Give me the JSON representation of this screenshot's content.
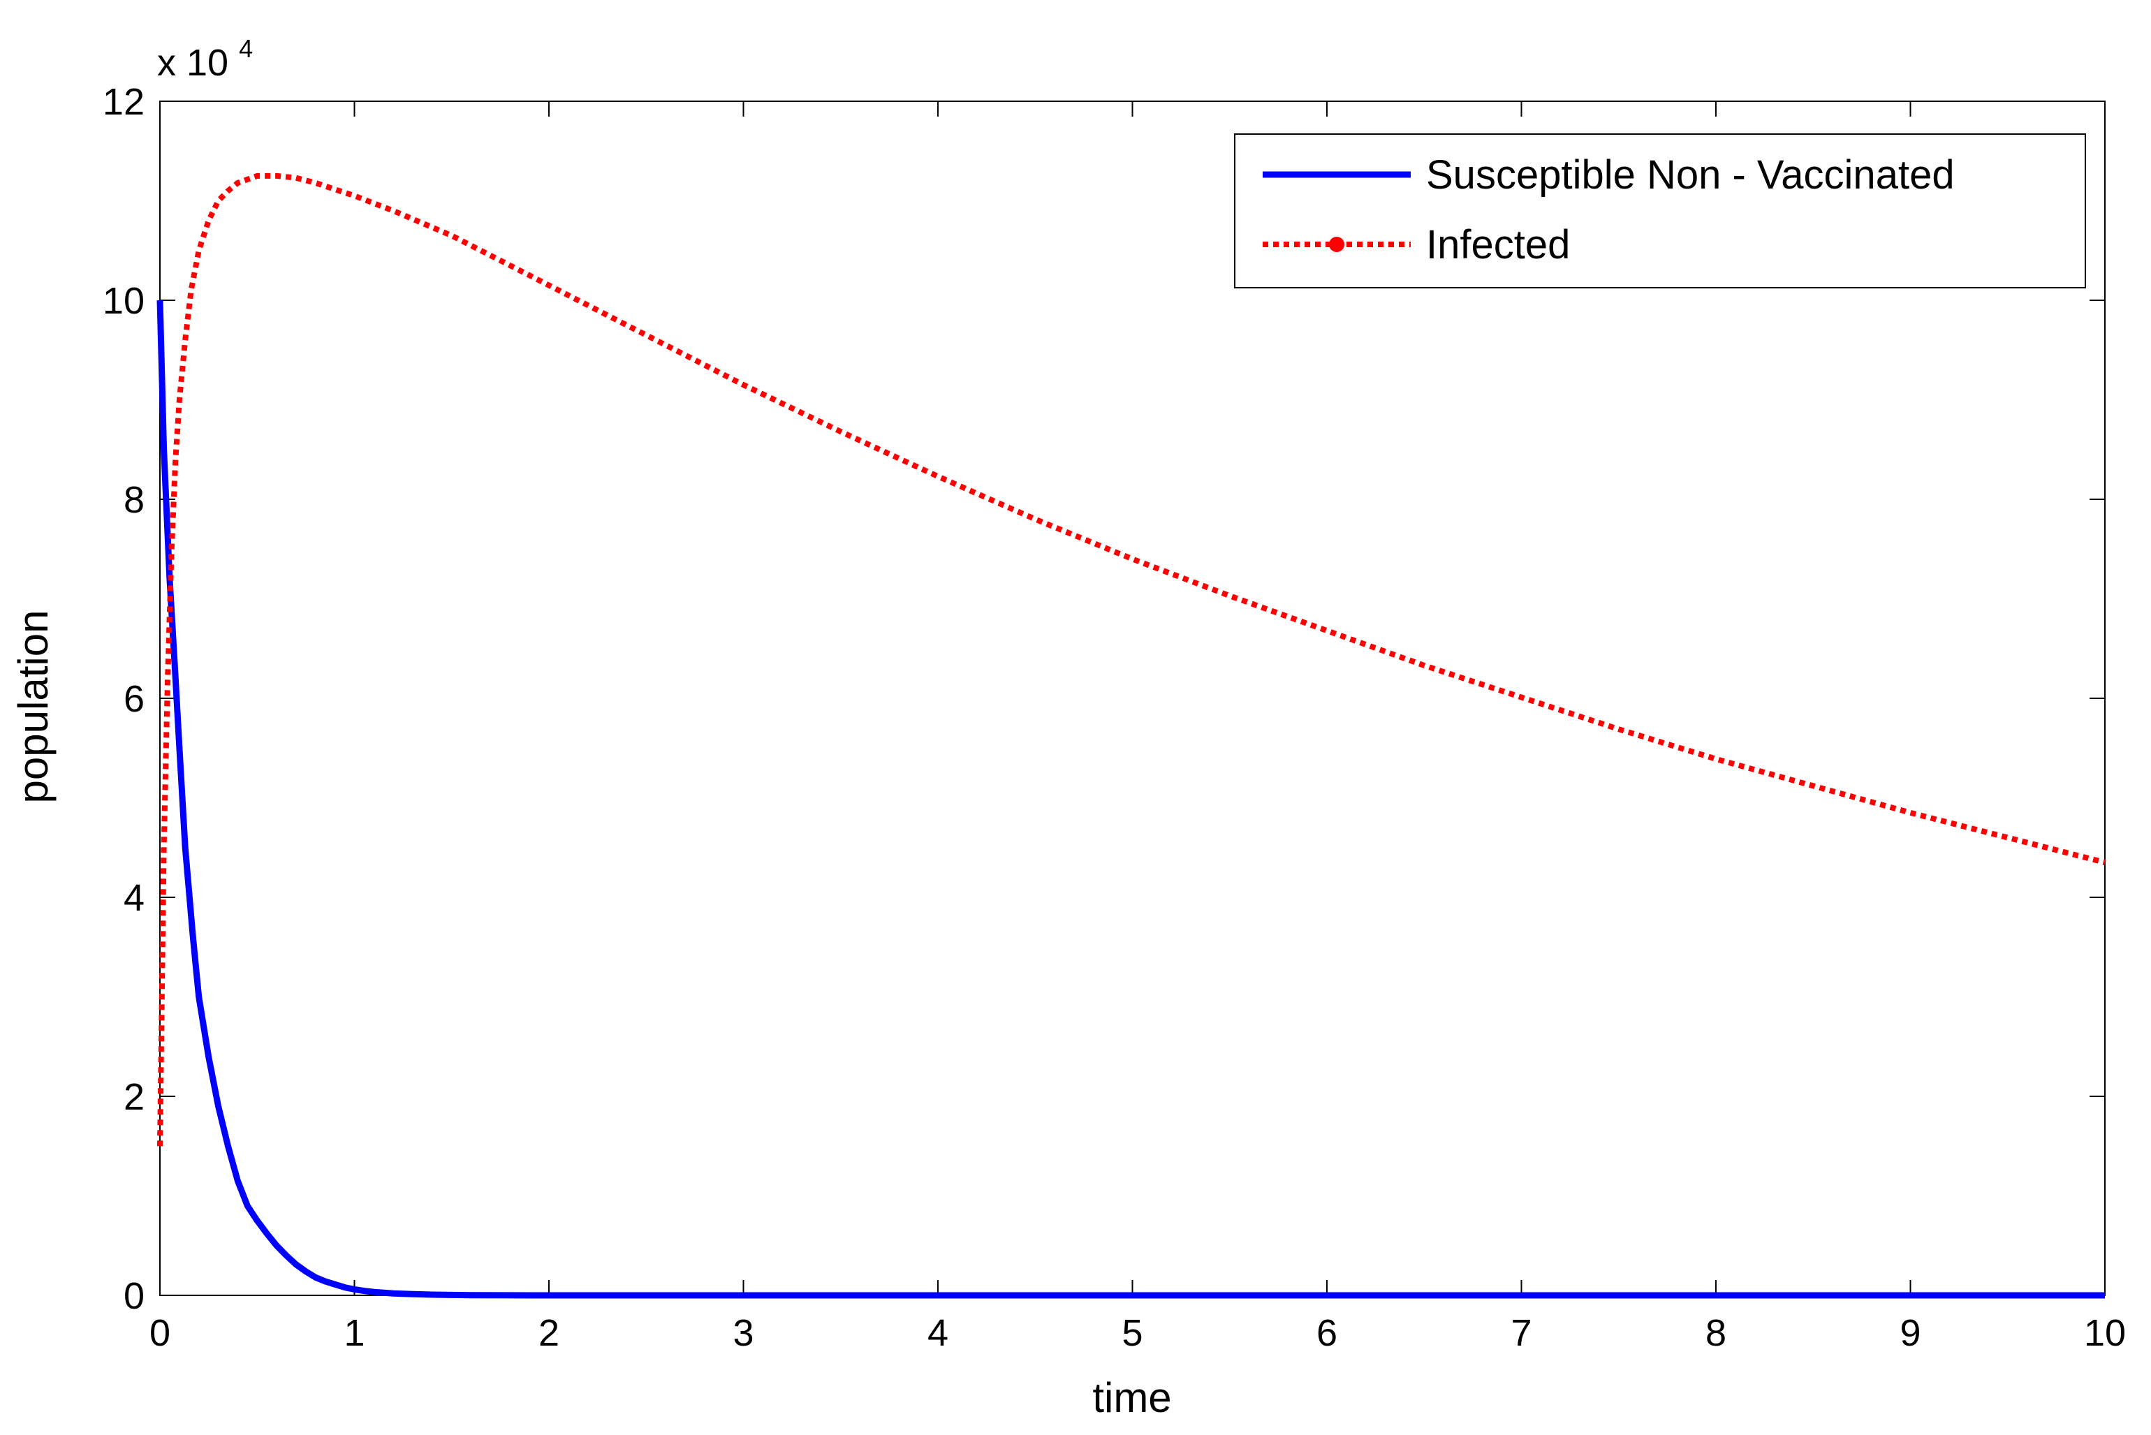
{
  "chart_data": {
    "type": "line",
    "title": "",
    "xlabel": "time",
    "ylabel": "population",
    "xlim": [
      0,
      10
    ],
    "ylim": [
      0,
      120000
    ],
    "y_multiplier_label": "x 10",
    "y_multiplier_exponent": "4",
    "x_ticks": [
      {
        "value": 0,
        "label": "0"
      },
      {
        "value": 1,
        "label": "1"
      },
      {
        "value": 2,
        "label": "2"
      },
      {
        "value": 3,
        "label": "3"
      },
      {
        "value": 4,
        "label": "4"
      },
      {
        "value": 5,
        "label": "5"
      },
      {
        "value": 6,
        "label": "6"
      },
      {
        "value": 7,
        "label": "7"
      },
      {
        "value": 8,
        "label": "8"
      },
      {
        "value": 9,
        "label": "9"
      },
      {
        "value": 10,
        "label": "10"
      }
    ],
    "y_ticks": [
      {
        "value": 0,
        "label": "0"
      },
      {
        "value": 20000,
        "label": "2"
      },
      {
        "value": 40000,
        "label": "4"
      },
      {
        "value": 60000,
        "label": "6"
      },
      {
        "value": 80000,
        "label": "8"
      },
      {
        "value": 100000,
        "label": "10"
      },
      {
        "value": 120000,
        "label": "12"
      }
    ],
    "grid": false,
    "legend_position": "top-right",
    "series": [
      {
        "name": "Susceptible Non - Vaccinated",
        "color": "#0000ff",
        "style": "solid",
        "marker": "none",
        "points": [
          [
            0,
            100000
          ],
          [
            0.02,
            85000
          ],
          [
            0.05,
            72000
          ],
          [
            0.08,
            62000
          ],
          [
            0.1,
            55000
          ],
          [
            0.13,
            45000
          ],
          [
            0.17,
            36000
          ],
          [
            0.2,
            30000
          ],
          [
            0.25,
            24000
          ],
          [
            0.3,
            19000
          ],
          [
            0.35,
            15000
          ],
          [
            0.4,
            11500
          ],
          [
            0.45,
            9000
          ],
          [
            0.5,
            7500
          ],
          [
            0.55,
            6200
          ],
          [
            0.6,
            5000
          ],
          [
            0.65,
            4000
          ],
          [
            0.7,
            3100
          ],
          [
            0.75,
            2400
          ],
          [
            0.8,
            1800
          ],
          [
            0.85,
            1400
          ],
          [
            0.9,
            1100
          ],
          [
            0.95,
            800
          ],
          [
            1.0,
            600
          ],
          [
            1.05,
            450
          ],
          [
            1.1,
            340
          ],
          [
            1.2,
            200
          ],
          [
            1.3,
            120
          ],
          [
            1.4,
            70
          ],
          [
            1.5,
            40
          ],
          [
            1.6,
            20
          ],
          [
            1.8,
            5
          ],
          [
            2,
            0
          ],
          [
            3,
            0
          ],
          [
            4,
            0
          ],
          [
            5,
            0
          ],
          [
            6,
            0
          ],
          [
            7,
            0
          ],
          [
            8,
            0
          ],
          [
            9,
            0
          ],
          [
            10,
            0
          ]
        ]
      },
      {
        "name": "Infected",
        "color": "#ff0000",
        "style": "dotted",
        "marker": "circle",
        "points": [
          [
            0,
            15000
          ],
          [
            0.01,
            30000
          ],
          [
            0.02,
            45000
          ],
          [
            0.04,
            62000
          ],
          [
            0.06,
            75000
          ],
          [
            0.08,
            84000
          ],
          [
            0.1,
            90000
          ],
          [
            0.13,
            96000
          ],
          [
            0.16,
            101000
          ],
          [
            0.2,
            105000
          ],
          [
            0.25,
            108000
          ],
          [
            0.3,
            110000
          ],
          [
            0.35,
            111000
          ],
          [
            0.4,
            111800
          ],
          [
            0.5,
            112500
          ],
          [
            0.6,
            112500
          ],
          [
            0.7,
            112300
          ],
          [
            0.8,
            111800
          ],
          [
            1.0,
            110500
          ],
          [
            1.2,
            109000
          ],
          [
            1.5,
            106500
          ],
          [
            2,
            101500
          ],
          [
            2.5,
            96500
          ],
          [
            3,
            91500
          ],
          [
            3.5,
            86800
          ],
          [
            4,
            82300
          ],
          [
            4.5,
            78000
          ],
          [
            5,
            74000
          ],
          [
            5.5,
            70300
          ],
          [
            6,
            66800
          ],
          [
            6.5,
            63300
          ],
          [
            7,
            60100
          ],
          [
            7.5,
            56900
          ],
          [
            8,
            53900
          ],
          [
            8.5,
            51200
          ],
          [
            9,
            48500
          ],
          [
            9.5,
            46000
          ],
          [
            10,
            43500
          ]
        ]
      }
    ]
  }
}
